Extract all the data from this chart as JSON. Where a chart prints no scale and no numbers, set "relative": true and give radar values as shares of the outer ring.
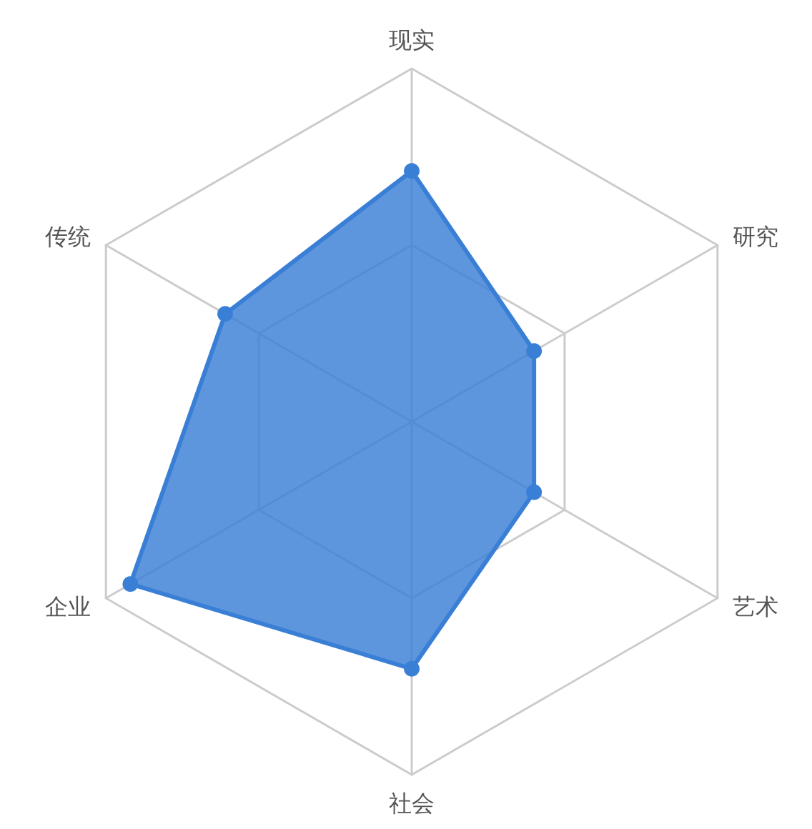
{
  "chart_data": {
    "type": "radar",
    "relative": true,
    "marker": "circle",
    "categories": [
      "现实",
      "研究",
      "艺术",
      "社会",
      "企业",
      "传统"
    ],
    "series": [
      {
        "color": "#3a7fd6",
        "values": [
          0.71,
          0.4,
          0.4,
          0.7,
          0.92,
          0.61
        ]
      }
    ]
  }
}
